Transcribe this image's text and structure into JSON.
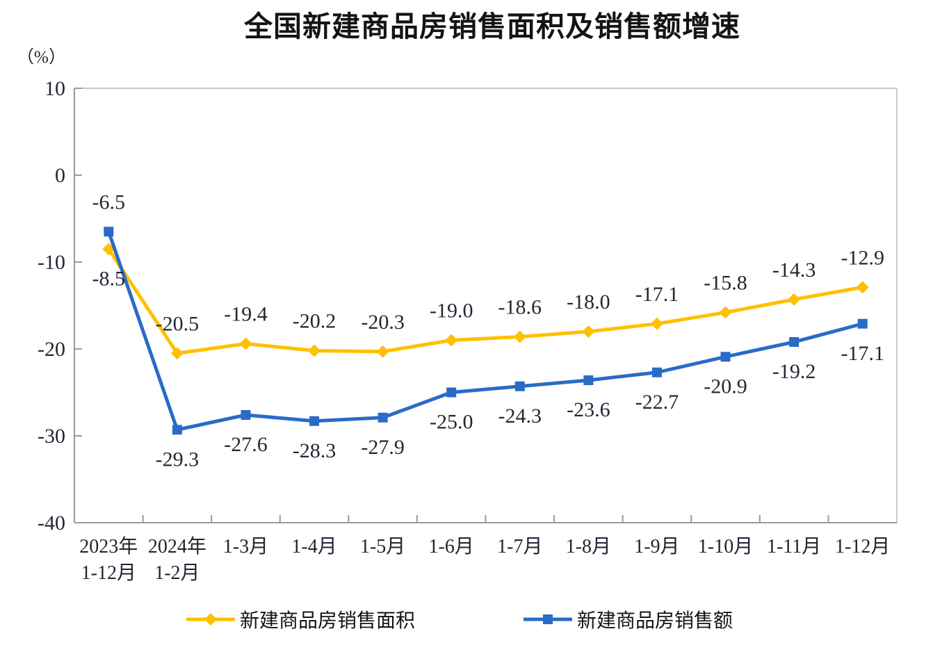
{
  "chart_data": {
    "type": "line",
    "title": "全国新建商品房销售面积及销售额增速",
    "unit": "（%）",
    "categories": [
      "2023年\n1-12月",
      "2024年\n1-2月",
      "1-3月",
      "1-4月",
      "1-5月",
      "1-6月",
      "1-7月",
      "1-8月",
      "1-9月",
      "1-10月",
      "1-11月",
      "1-12月"
    ],
    "ylim": [
      -40,
      10
    ],
    "yticks": [
      10,
      0,
      -10,
      -20,
      -30,
      -40
    ],
    "grid": false,
    "legend_position": "bottom",
    "axis_color": "#9a9a9a",
    "border_color": "#c9c9c9",
    "label_decimals": 1,
    "series": [
      {
        "name": "新建商品房销售面积",
        "slug": "sales-area",
        "color": "#FFC000",
        "marker": "diamond",
        "label_position": "above",
        "first_label_position": "below",
        "values": [
          -8.5,
          -20.5,
          -19.4,
          -20.2,
          -20.3,
          -19.0,
          -18.6,
          -18.0,
          -17.1,
          -15.8,
          -14.3,
          -12.9
        ]
      },
      {
        "name": "新建商品房销售额",
        "slug": "sales-amount",
        "color": "#2A6BC8",
        "marker": "square",
        "label_position": "below",
        "first_label_position": "above",
        "values": [
          -6.5,
          -29.3,
          -27.6,
          -28.3,
          -27.9,
          -25.0,
          -24.3,
          -23.6,
          -22.7,
          -20.9,
          -19.2,
          -17.1
        ]
      }
    ]
  }
}
